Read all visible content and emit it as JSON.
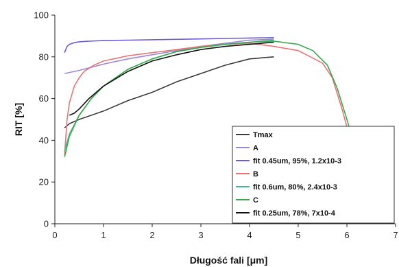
{
  "chart_data": {
    "type": "line",
    "title": "",
    "xlabel": "Długość fali [μm]",
    "ylabel": "RIT [%]",
    "xlim": [
      0,
      7
    ],
    "ylim": [
      0,
      100
    ],
    "xticks": [
      0,
      1,
      2,
      3,
      4,
      5,
      6,
      7
    ],
    "yticks": [
      0,
      20,
      40,
      60,
      80,
      100
    ],
    "grid": false,
    "legend_position": "bottom-right",
    "series": [
      {
        "name": "Tmax",
        "color": "#3a3a3a",
        "x": [
          0.2,
          0.3,
          0.5,
          1,
          1.5,
          2,
          2.5,
          3,
          3.5,
          4,
          4.5
        ],
        "y": [
          46,
          48,
          50,
          54,
          59,
          63,
          68,
          72,
          76,
          79,
          80
        ]
      },
      {
        "name": "A",
        "color": "#9b86d6",
        "x": [
          0.2,
          0.5,
          1,
          1.5,
          2,
          2.5,
          3,
          3.5,
          4,
          4.5
        ],
        "y": [
          72,
          73.5,
          76.5,
          79,
          81,
          83,
          85,
          86.5,
          88,
          88.5
        ]
      },
      {
        "name": "fit 0.45um, 95%, 1.2x10-3",
        "color": "#6b5cd6",
        "x": [
          0.2,
          0.25,
          0.3,
          0.4,
          0.5,
          0.7,
          1,
          1.5,
          2,
          2.5,
          3,
          3.5,
          4,
          4.5
        ],
        "y": [
          82,
          85,
          86,
          86.8,
          87.2,
          87.5,
          87.8,
          88,
          88.2,
          88.4,
          88.6,
          88.8,
          89,
          89.2
        ]
      },
      {
        "name": "B",
        "color": "#e87474",
        "x": [
          0.2,
          0.25,
          0.3,
          0.4,
          0.5,
          0.6,
          0.8,
          1,
          1.5,
          2,
          2.5,
          3,
          3.5,
          4,
          4.5,
          5,
          5.5,
          5.7,
          5.9,
          6.05
        ],
        "y": [
          33,
          50,
          58,
          66,
          70,
          73,
          76,
          78,
          80.5,
          82,
          83.5,
          85,
          86,
          86.5,
          85,
          83,
          77,
          70,
          55,
          42
        ]
      },
      {
        "name": "fit 0.6um, 80%, 2.4x10-3",
        "color": "#40b890",
        "x": [
          0.2,
          0.3,
          0.5,
          0.75,
          1,
          1.5,
          2,
          2.5,
          3,
          3.5,
          4,
          4.5
        ],
        "y": [
          35,
          43,
          52,
          60,
          66,
          74,
          79,
          82.5,
          84.5,
          86,
          87,
          88
        ]
      },
      {
        "name": "C",
        "color": "#3aa84a",
        "x": [
          0.2,
          0.3,
          0.5,
          0.75,
          1,
          1.5,
          2,
          2.5,
          3,
          3.5,
          4,
          4.5,
          5,
          5.3,
          5.6,
          5.8,
          6.0,
          6.1
        ],
        "y": [
          32,
          42,
          52,
          60,
          66,
          74,
          79,
          82.5,
          84.5,
          86,
          87,
          87.5,
          86,
          83,
          76,
          65,
          50,
          42
        ]
      },
      {
        "name": "fit 0.25um, 78%, 7x10-4",
        "color": "#111111",
        "x": [
          0.3,
          0.4,
          0.5,
          0.7,
          1,
          1.5,
          2,
          2.5,
          3,
          3.5,
          4,
          4.5
        ],
        "y": [
          52,
          53,
          55,
          60,
          66,
          73,
          78,
          81,
          83.5,
          85,
          86,
          87
        ]
      }
    ]
  }
}
